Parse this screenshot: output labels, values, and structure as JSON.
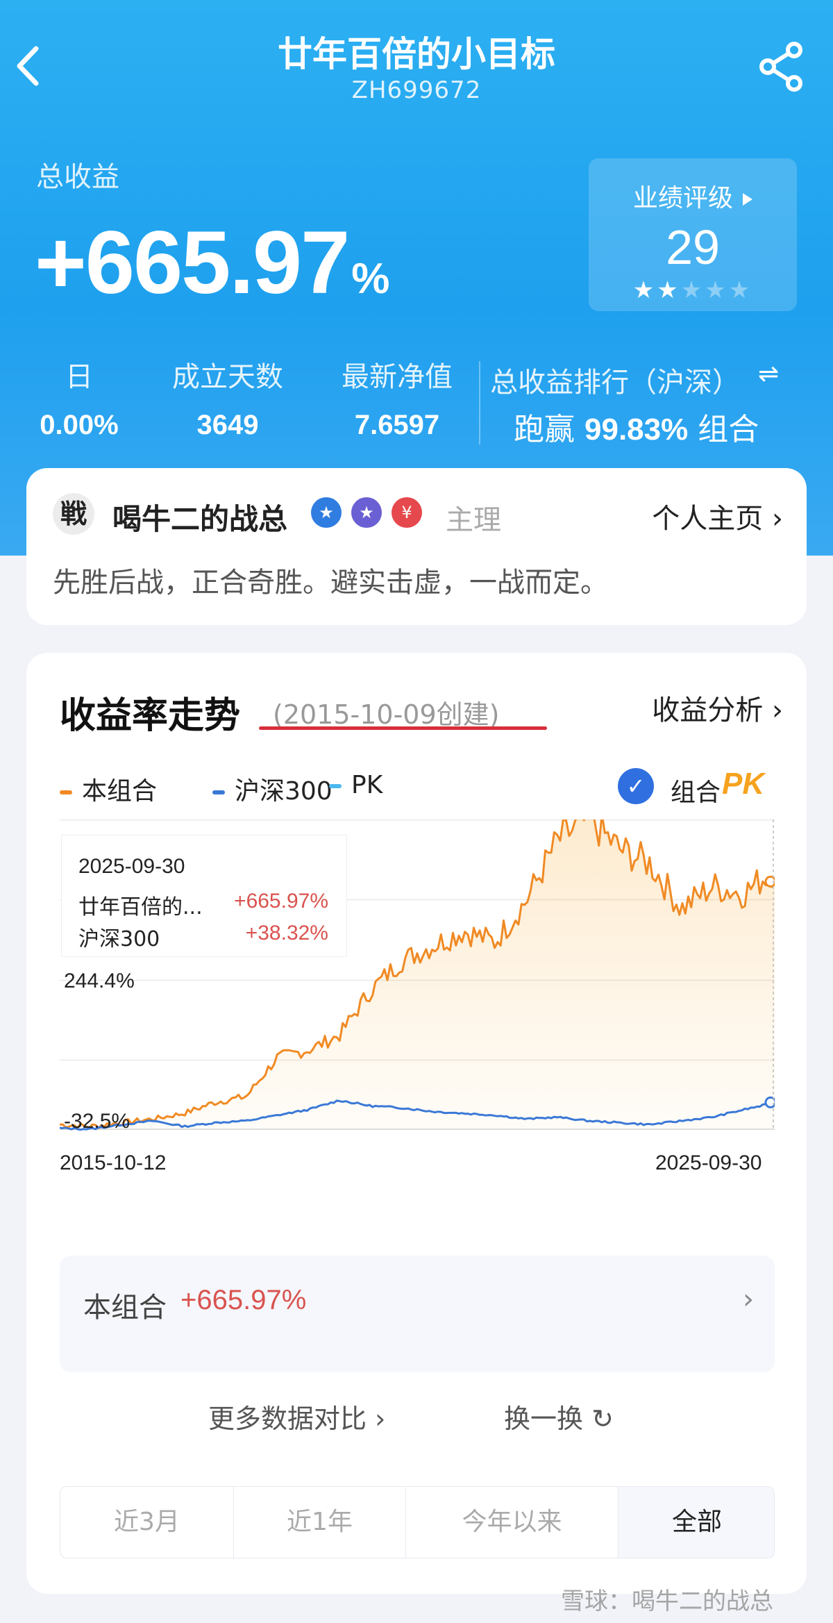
{
  "header": {
    "title": "廿年百倍的小目标",
    "code": "ZH699672"
  },
  "summary": {
    "total_label": "总收益",
    "total_value": "+665.97",
    "total_unit": "%",
    "rating_title": "业绩评级",
    "rating_score": "29",
    "rating_stars": 1.5
  },
  "stats": [
    {
      "label": "日",
      "value": "0.00%"
    },
    {
      "label": "成立天数",
      "value": "3649"
    },
    {
      "label": "最新净值",
      "value": "7.6597"
    }
  ],
  "rank": {
    "label": "总收益排行（沪深）",
    "swap_icon": "⇌",
    "prefix": "跑赢",
    "percent": "99.83%",
    "suffix": "组合"
  },
  "profile": {
    "avatar_char": "戦",
    "name": "喝牛二的战总",
    "badges": [
      "medal-icon",
      "star-icon",
      "yen-icon"
    ],
    "badge_colors": [
      "#2f7de0",
      "#6a5fd3",
      "#e5484d"
    ],
    "badge_glyphs": [
      "★",
      "★",
      "¥"
    ],
    "role": "主理",
    "homepage": "个人主页 ›",
    "motto": "先胜后战，正合奇胜。避实击虚，一战而定。"
  },
  "trend": {
    "title": "收益率走势",
    "created": "(2015-10-09创建)",
    "analysis_link": "收益分析 ›",
    "legend": [
      {
        "name": "本组合",
        "color": "#f08a24"
      },
      {
        "name": "沪深300",
        "color": "#3a78d6"
      },
      {
        "name": "PK",
        "color": "#4cb8f0"
      }
    ],
    "pk_label": "组合",
    "pk_brand": "PK",
    "tooltip": {
      "date": "2025-09-30",
      "row1_name": "廿年百倍的...",
      "row1_value": "+665.97%",
      "row2_name": "沪深300",
      "row2_value": "+38.32%"
    },
    "y_labels": [
      "244.4%",
      "-32.5%"
    ],
    "x_labels": [
      "2015-10-12",
      "2025-09-30"
    ],
    "summary_label": "本组合",
    "summary_value": "+665.97%",
    "summary_chevron": "›",
    "more_link": "更多数据对比  ›",
    "swap_link": "换一换 ↻",
    "ranges": [
      "近3月",
      "近1年",
      "今年以来",
      "全部"
    ],
    "active_range": "全部"
  },
  "watermark": "雪球：喝牛二的战总",
  "chart_data": {
    "type": "line",
    "x_range": [
      "2015-10-12",
      "2025-09-30"
    ],
    "ylim": [
      -32.5,
      798.9
    ],
    "y_tick_labels": [
      "244.4%",
      "-32.5%"
    ],
    "grid": true,
    "x": [
      "2015-10",
      "2016-06",
      "2017-01",
      "2017-08",
      "2018-03",
      "2018-10",
      "2019-05",
      "2019-12",
      "2020-07",
      "2021-02",
      "2021-06",
      "2021-09",
      "2022-01",
      "2022-04",
      "2022-08",
      "2022-12",
      "2023-04",
      "2023-08",
      "2023-12",
      "2024-04",
      "2024-08",
      "2024-12",
      "2025-04",
      "2025-09"
    ],
    "series": [
      {
        "name": "本组合",
        "color": "#f08a24",
        "values": [
          -20,
          -25,
          -15,
          -5,
          10,
          40,
          55,
          160,
          180,
          220,
          340,
          420,
          460,
          500,
          470,
          580,
          740,
          800,
          720,
          680,
          560,
          620,
          600,
          666
        ]
      },
      {
        "name": "沪深300",
        "color": "#3a78d6",
        "values": [
          -30,
          -32,
          -20,
          -10,
          -25,
          -15,
          -10,
          5,
          20,
          45,
          30,
          25,
          15,
          10,
          5,
          -5,
          0,
          -10,
          -15,
          -20,
          -10,
          0,
          20,
          38
        ]
      }
    ]
  }
}
